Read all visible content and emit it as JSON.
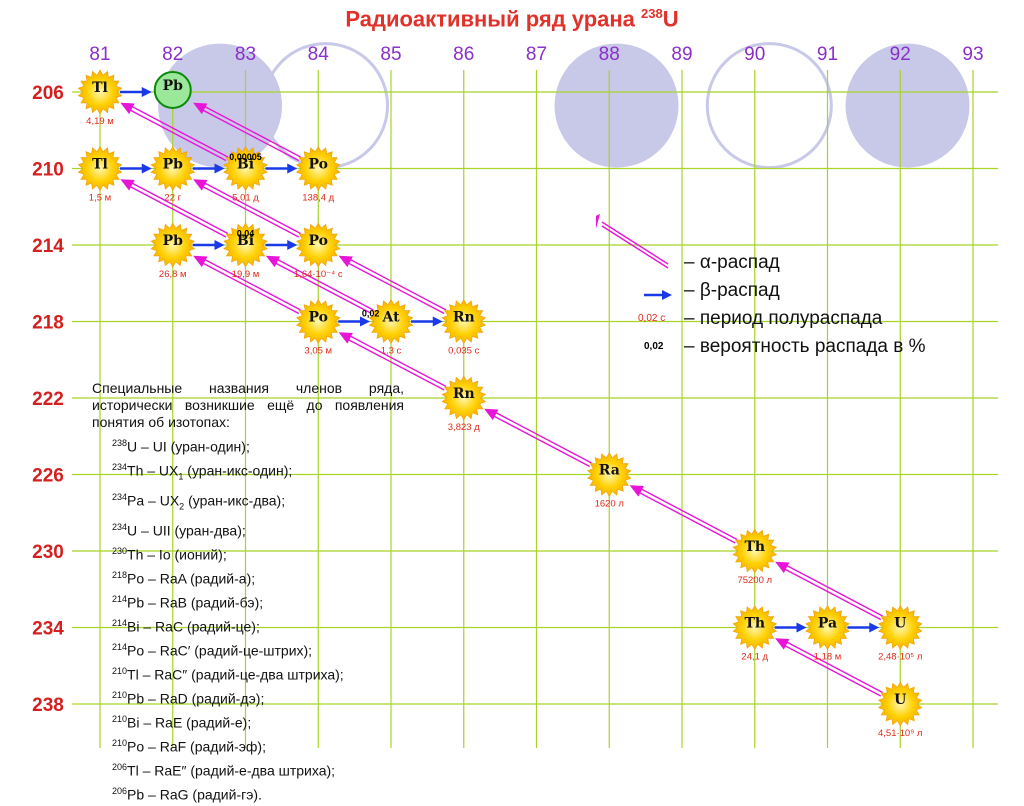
{
  "title": {
    "text": "Радиоактивный ряд урана ",
    "iso": "238",
    "sym": "U"
  },
  "colors": {
    "grid": "#a8d428",
    "header": "#8b2fc9",
    "row": "#d42020",
    "star": "#ffd000",
    "alpha": "#e815d8",
    "beta": "#1a3ae8",
    "halflife": "#e02a1a",
    "circle": "#c8c8e8",
    "pb_final": "#9be89b"
  },
  "z_values": [
    "81",
    "82",
    "83",
    "84",
    "85",
    "86",
    "87",
    "88",
    "89",
    "90",
    "91",
    "92",
    "93"
  ],
  "a_values": [
    "206",
    "210",
    "214",
    "218",
    "222",
    "226",
    "230",
    "234",
    "238"
  ],
  "nuclides": [
    {
      "id": "tl206",
      "sym": "Tl",
      "z": 81,
      "a": 206,
      "half": "4,19 м"
    },
    {
      "id": "pb206",
      "sym": "Pb",
      "z": 82,
      "a": 206,
      "half": "",
      "stable": true
    },
    {
      "id": "tl210",
      "sym": "Tl",
      "z": 81,
      "a": 210,
      "half": "1,5 м"
    },
    {
      "id": "pb210",
      "sym": "Pb",
      "z": 82,
      "a": 210,
      "half": "22 г"
    },
    {
      "id": "bi210",
      "sym": "Bi",
      "z": 83,
      "a": 210,
      "half": "5,01 д"
    },
    {
      "id": "po210",
      "sym": "Po",
      "z": 84,
      "a": 210,
      "half": "138,4 д"
    },
    {
      "id": "pb214",
      "sym": "Pb",
      "z": 82,
      "a": 214,
      "half": "26,8 м"
    },
    {
      "id": "bi214",
      "sym": "Bi",
      "z": 83,
      "a": 214,
      "half": "19,9 м"
    },
    {
      "id": "po214",
      "sym": "Po",
      "z": 84,
      "a": 214,
      "half": "1,64·10⁻⁴ с"
    },
    {
      "id": "po218",
      "sym": "Po",
      "z": 84,
      "a": 218,
      "half": "3,05 м"
    },
    {
      "id": "at218",
      "sym": "At",
      "z": 85,
      "a": 218,
      "half": "1,3 с"
    },
    {
      "id": "rn218",
      "sym": "Rn",
      "z": 86,
      "a": 218,
      "half": "0,035 с"
    },
    {
      "id": "rn222",
      "sym": "Rn",
      "z": 86,
      "a": 222,
      "half": "3,823 д"
    },
    {
      "id": "ra226",
      "sym": "Ra",
      "z": 88,
      "a": 226,
      "half": "1620 л"
    },
    {
      "id": "th230",
      "sym": "Th",
      "z": 90,
      "a": 230,
      "half": "75200 л"
    },
    {
      "id": "th234",
      "sym": "Th",
      "z": 90,
      "a": 234,
      "half": "24,1 д"
    },
    {
      "id": "pa234",
      "sym": "Pa",
      "z": 91,
      "a": 234,
      "half": "1,18 м"
    },
    {
      "id": "u234",
      "sym": "U",
      "z": 92,
      "a": 234,
      "half": "2,48·10⁵ л"
    },
    {
      "id": "u238",
      "sym": "U",
      "z": 92,
      "a": 238,
      "half": "4,51·10⁹ л"
    }
  ],
  "alpha_decays": [
    [
      "u238",
      "th234"
    ],
    [
      "u234",
      "th230"
    ],
    [
      "th230",
      "ra226"
    ],
    [
      "ra226",
      "rn222"
    ],
    [
      "rn222",
      "po218"
    ],
    [
      "rn218",
      "po214"
    ],
    [
      "at218",
      "bi214"
    ],
    [
      "po218",
      "pb214"
    ],
    [
      "po214",
      "pb210"
    ],
    [
      "bi214",
      "tl210"
    ],
    [
      "po210",
      "pb206"
    ],
    [
      "bi210",
      "tl206"
    ]
  ],
  "beta_decays": [
    [
      "th234",
      "pa234"
    ],
    [
      "pa234",
      "u234"
    ],
    [
      "po218",
      "at218"
    ],
    [
      "at218",
      "rn218"
    ],
    [
      "pb214",
      "bi214"
    ],
    [
      "bi214",
      "po214"
    ],
    [
      "tl210",
      "pb210"
    ],
    [
      "pb210",
      "bi210"
    ],
    [
      "bi210",
      "po210"
    ],
    [
      "tl206",
      "pb206"
    ]
  ],
  "branch_probabilities": [
    {
      "text": "0,02",
      "z": 84.72,
      "a": 217.75
    },
    {
      "text": "0,04",
      "z": 83.0,
      "a": 213.55
    },
    {
      "text": "0,00005",
      "z": 83.0,
      "a": 209.55
    }
  ],
  "legend": {
    "alpha": "– α-распад",
    "beta": "– β-распад",
    "halflife_sample": "0,02 с",
    "halflife": "– период полураспада",
    "prob_sample": "0,02",
    "prob": "– вероятность распада в %"
  },
  "notes": {
    "intro": "Специальные названия членов ряда, исторически возникшие ещё до появления понятия об изотопах:",
    "items": [
      {
        "iso": "238",
        "el": "U",
        "name": "UI",
        "sub": "",
        "rest": " (уран-один);"
      },
      {
        "iso": "234",
        "el": "Th",
        "name": "UX",
        "sub": "1",
        "rest": " (уран-икс-один);"
      },
      {
        "iso": "234",
        "el": "Pa",
        "name": "UX",
        "sub": "2",
        "rest": " (уран-икс-два);"
      },
      {
        "iso": "234",
        "el": "U",
        "name": "UII",
        "sub": "",
        "rest": " (уран-два);"
      },
      {
        "iso": "230",
        "el": "Th",
        "name": "Io",
        "sub": "",
        "rest": " (ионий);"
      },
      {
        "iso": "218",
        "el": "Po",
        "name": "RaA",
        "sub": "",
        "rest": " (радий-а);"
      },
      {
        "iso": "214",
        "el": "Pb",
        "name": "RaB",
        "sub": "",
        "rest": " (радий-бэ);"
      },
      {
        "iso": "214",
        "el": "Bi",
        "name": "RaC",
        "sub": "",
        "rest": " (радий-це);"
      },
      {
        "iso": "214",
        "el": "Po",
        "name": "RaC′",
        "sub": "",
        "rest": " (радий-це-штрих);"
      },
      {
        "iso": "210",
        "el": "Tl",
        "name": "RaC″",
        "sub": "",
        "rest": " (радий-це-два штриха);"
      },
      {
        "iso": "210",
        "el": "Pb",
        "name": "RaD",
        "sub": "",
        "rest": " (радий-дэ);"
      },
      {
        "iso": "210",
        "el": "Bi",
        "name": "RaE",
        "sub": "",
        "rest": " (радий-е);"
      },
      {
        "iso": "210",
        "el": "Po",
        "name": "RaF",
        "sub": "",
        "rest": " (радий-эф);"
      },
      {
        "iso": "206",
        "el": "Tl",
        "name": "RaE″",
        "sub": "",
        "rest": " (радий-е-два штриха);"
      },
      {
        "iso": "206",
        "el": "Pb",
        "name": "RaG",
        "sub": "",
        "rest": " (радий-гэ)."
      }
    ]
  }
}
